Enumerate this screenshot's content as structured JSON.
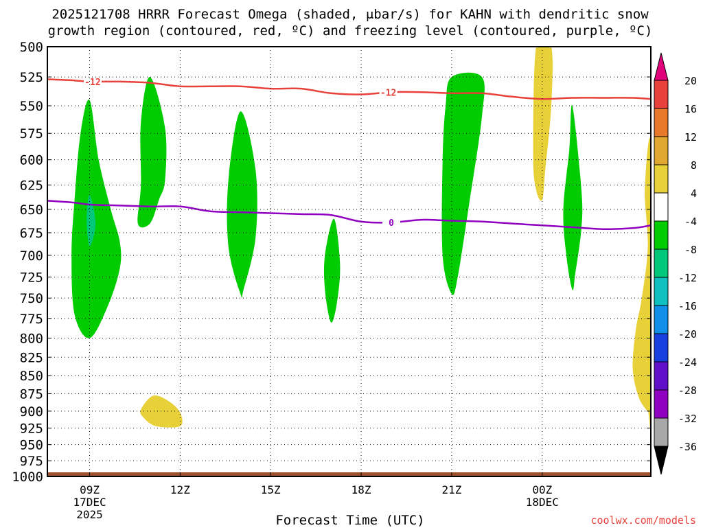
{
  "title_line1": "2025121708 HRRR Forecast Omega (shaded, μbar/s) for KAHN with dendritic snow",
  "title_line2": "growth region (contoured, red, ºC) and freezing level (contoured, purple, ºC)",
  "credit": "coolwx.com/models",
  "chart_data": {
    "type": "heatmap",
    "title": "2025121708 HRRR Forecast Omega (shaded, μbar/s) for KAHN with dendritic snow growth region (contoured, red, ºC) and freezing level (contoured, purple, ºC)",
    "xlabel": "Forecast Time (UTC)",
    "ylabel": "",
    "xlim_hours": [
      7.6,
      27.6
    ],
    "ylim": [
      1000,
      500
    ],
    "y_scale": "log-pressure",
    "grid": true,
    "x_ticks": [
      {
        "hour": 9,
        "label": "09Z",
        "sub1": "17DEC",
        "sub2": "2025"
      },
      {
        "hour": 12,
        "label": "12Z",
        "sub1": "",
        "sub2": ""
      },
      {
        "hour": 15,
        "label": "15Z",
        "sub1": "",
        "sub2": ""
      },
      {
        "hour": 18,
        "label": "18Z",
        "sub1": "",
        "sub2": ""
      },
      {
        "hour": 21,
        "label": "21Z",
        "sub1": "",
        "sub2": ""
      },
      {
        "hour": 24,
        "label": "00Z",
        "sub1": "18DEC",
        "sub2": ""
      }
    ],
    "y_ticks": [
      500,
      525,
      550,
      575,
      600,
      625,
      650,
      675,
      700,
      725,
      750,
      775,
      800,
      825,
      850,
      875,
      900,
      925,
      950,
      975,
      1000
    ],
    "colorbar": {
      "labels": [
        "20",
        "16",
        "12",
        "8",
        "4",
        "-4",
        "-8",
        "-12",
        "-16",
        "-20",
        "-24",
        "-28",
        "-32",
        "-36"
      ],
      "colors": [
        "#e8403a",
        "#e8782a",
        "#e0a830",
        "#e8d038",
        "#ffffff",
        "#00cc00",
        "#00c87a",
        "#10c0c0",
        "#1090e8",
        "#1840e0",
        "#6010c8",
        "#9000c0",
        "#a8a8a8"
      ],
      "top_arrow_color": "#e0007a",
      "bottom_arrow_color": "#000000"
    },
    "shaded_regions": [
      {
        "class": "-8 to -4",
        "color": "#00cc00",
        "points": [
          [
            9.0,
            545
          ],
          [
            9.3,
            600
          ],
          [
            9.7,
            650
          ],
          [
            10.0,
            685
          ],
          [
            10.0,
            715
          ],
          [
            9.6,
            760
          ],
          [
            9.0,
            800
          ],
          [
            8.5,
            770
          ],
          [
            8.4,
            700
          ],
          [
            8.5,
            640
          ],
          [
            8.7,
            575
          ]
        ]
      },
      {
        "class": "-12 to -8",
        "color": "#00c87a",
        "points": [
          [
            9.0,
            635
          ],
          [
            9.2,
            665
          ],
          [
            9.0,
            690
          ],
          [
            8.9,
            660
          ]
        ]
      },
      {
        "class": "-8 to -4",
        "color": "#00cc00",
        "points": [
          [
            11.0,
            525
          ],
          [
            11.5,
            570
          ],
          [
            11.5,
            620
          ],
          [
            11.3,
            640
          ],
          [
            11.0,
            665
          ],
          [
            10.6,
            665
          ],
          [
            10.7,
            625
          ],
          [
            10.7,
            565
          ]
        ]
      },
      {
        "class": "-8 to -4",
        "color": "#00cc00",
        "points": [
          [
            14.0,
            555
          ],
          [
            14.5,
            610
          ],
          [
            14.5,
            680
          ],
          [
            14.1,
            740
          ],
          [
            14.0,
            745
          ],
          [
            13.6,
            690
          ],
          [
            13.6,
            620
          ]
        ]
      },
      {
        "class": "-8 to -4",
        "color": "#00cc00",
        "points": [
          [
            17.1,
            660
          ],
          [
            17.3,
            710
          ],
          [
            17.2,
            755
          ],
          [
            17.0,
            780
          ],
          [
            16.8,
            740
          ],
          [
            16.8,
            700
          ]
        ]
      },
      {
        "class": "-8 to -4",
        "color": "#00cc00",
        "points": [
          [
            21.0,
            525
          ],
          [
            22.0,
            525
          ],
          [
            22.0,
            560
          ],
          [
            21.6,
            640
          ],
          [
            21.2,
            725
          ],
          [
            21.0,
            745
          ],
          [
            20.7,
            700
          ],
          [
            20.7,
            600
          ],
          [
            20.8,
            550
          ]
        ]
      },
      {
        "class": "-8 to -4",
        "color": "#00cc00",
        "points": [
          [
            25.0,
            550
          ],
          [
            25.3,
            630
          ],
          [
            25.3,
            670
          ],
          [
            25.1,
            720
          ],
          [
            25.0,
            740
          ],
          [
            24.8,
            700
          ],
          [
            24.7,
            650
          ],
          [
            24.9,
            590
          ]
        ]
      },
      {
        "class": "4 to 8",
        "color": "#e8d038",
        "points": [
          [
            23.8,
            500
          ],
          [
            24.3,
            500
          ],
          [
            24.3,
            550
          ],
          [
            24.1,
            610
          ],
          [
            24.0,
            640
          ],
          [
            23.8,
            630
          ],
          [
            23.7,
            595
          ]
        ]
      },
      {
        "class": "4 to 8",
        "color": "#e8d038",
        "points": [
          [
            27.6,
            590
          ],
          [
            27.6,
            895
          ],
          [
            27.5,
            900
          ],
          [
            27.2,
            880
          ],
          [
            27.0,
            840
          ],
          [
            27.1,
            790
          ],
          [
            27.3,
            750
          ],
          [
            27.5,
            690
          ],
          [
            27.4,
            630
          ]
        ]
      },
      {
        "class": "4 to 8",
        "color": "#e8d038",
        "points": [
          [
            11.1,
            878
          ],
          [
            11.6,
            885
          ],
          [
            12.0,
            902
          ],
          [
            12.0,
            922
          ],
          [
            11.2,
            922
          ],
          [
            10.8,
            910
          ],
          [
            10.7,
            898
          ]
        ]
      }
    ],
    "contours": [
      {
        "name": "-12",
        "color": "#e8403a",
        "label_at": [
          9.1,
          18.9
        ],
        "points": [
          [
            7.6,
            527
          ],
          [
            8.5,
            528
          ],
          [
            9.0,
            529
          ],
          [
            10.0,
            529
          ],
          [
            11.0,
            530
          ],
          [
            12.0,
            533
          ],
          [
            13.0,
            533
          ],
          [
            14.0,
            533
          ],
          [
            15.0,
            535
          ],
          [
            16.0,
            535
          ],
          [
            17.0,
            539
          ],
          [
            18.0,
            540
          ],
          [
            19.0,
            538
          ],
          [
            20.0,
            538
          ],
          [
            21.0,
            539
          ],
          [
            22.0,
            539
          ],
          [
            23.0,
            542
          ],
          [
            24.0,
            544
          ],
          [
            25.0,
            543
          ],
          [
            26.0,
            543
          ],
          [
            27.0,
            543
          ],
          [
            27.6,
            544
          ]
        ]
      },
      {
        "name": "0",
        "color": "#9000c0",
        "label_at": [
          19.0
        ],
        "points": [
          [
            7.6,
            641
          ],
          [
            8.5,
            643
          ],
          [
            9.0,
            645
          ],
          [
            10.0,
            646
          ],
          [
            11.0,
            647
          ],
          [
            12.0,
            647
          ],
          [
            13.0,
            652
          ],
          [
            14.0,
            653
          ],
          [
            15.0,
            654
          ],
          [
            16.0,
            655
          ],
          [
            17.0,
            656
          ],
          [
            18.0,
            663
          ],
          [
            19.0,
            664
          ],
          [
            20.0,
            661
          ],
          [
            21.0,
            662
          ],
          [
            22.0,
            663
          ],
          [
            23.0,
            665
          ],
          [
            24.0,
            667
          ],
          [
            25.0,
            669
          ],
          [
            26.0,
            671
          ],
          [
            27.0,
            670
          ],
          [
            27.6,
            667
          ]
        ]
      }
    ],
    "surface_band": {
      "color": "#a0522d",
      "from_hour": 7.6,
      "to_hour": 27.6
    }
  }
}
